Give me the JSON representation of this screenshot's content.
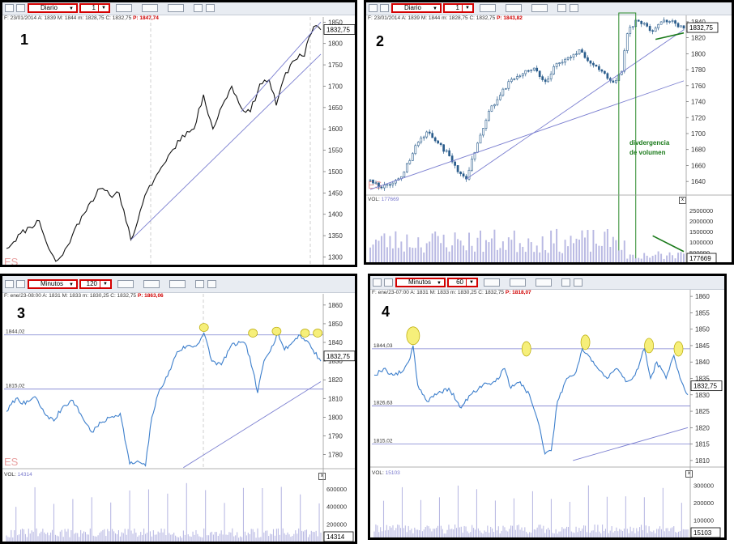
{
  "panels": [
    {
      "id": "p1",
      "number": "1",
      "toolbar": {
        "timeframe": "Diario",
        "period": "1"
      },
      "info": {
        "fecha": "F: 23/01/2014",
        "a": "A: 1839",
        "m": "M: 1844",
        "mi": "m: 1828,75",
        "c": "C: 1832,75",
        "p": "P: 1847,74"
      },
      "price_label": "1832,75",
      "es_label": "ES",
      "chart_data": {
        "type": "line",
        "title": "",
        "y_ticks": [
          1850,
          1800,
          1750,
          1700,
          1650,
          1600,
          1550,
          1500,
          1450,
          1400,
          1350,
          1300
        ],
        "y_range": [
          1282,
          1862
        ],
        "anchors": [
          [
            0,
            1320
          ],
          [
            6,
            1355
          ],
          [
            10,
            1370
          ],
          [
            14,
            1385
          ],
          [
            18,
            1320
          ],
          [
            21,
            1290
          ],
          [
            24,
            1305
          ],
          [
            28,
            1350
          ],
          [
            32,
            1395
          ],
          [
            36,
            1430
          ],
          [
            40,
            1460
          ],
          [
            44,
            1445
          ],
          [
            48,
            1450
          ],
          [
            50,
            1410
          ],
          [
            53,
            1340
          ],
          [
            56,
            1385
          ],
          [
            60,
            1455
          ],
          [
            65,
            1500
          ],
          [
            70,
            1545
          ],
          [
            75,
            1585
          ],
          [
            80,
            1600
          ],
          [
            84,
            1680
          ],
          [
            88,
            1600
          ],
          [
            92,
            1655
          ],
          [
            96,
            1700
          ],
          [
            100,
            1650
          ],
          [
            104,
            1640
          ],
          [
            108,
            1705
          ],
          [
            112,
            1715
          ],
          [
            115,
            1655
          ],
          [
            118,
            1715
          ],
          [
            121,
            1750
          ],
          [
            125,
            1775
          ],
          [
            127,
            1770
          ],
          [
            129,
            1815
          ],
          [
            132,
            1842
          ],
          [
            134,
            1832
          ]
        ],
        "n": 135,
        "seed": 11
      },
      "trendlines": [
        {
          "from": [
            53,
            1340
          ],
          "to": [
            134,
            1775
          ]
        },
        {
          "from": [
            100,
            1640
          ],
          "to": [
            134,
            1850
          ]
        }
      ]
    },
    {
      "id": "p2",
      "number": "2",
      "toolbar": {
        "timeframe": "Diario",
        "period": "1"
      },
      "info": {
        "fecha": "F: 23/01/2014",
        "a": "A: 1839",
        "m": "M: 1844",
        "mi": "m: 1828,75",
        "c": "C: 1832,75",
        "p": "P: 1843,82"
      },
      "price_label": "1832,75",
      "es_label": "ES",
      "annotation": [
        "divdergencia",
        "de volumen"
      ],
      "volume": {
        "label": "VOL:",
        "value": "177669",
        "y_ticks": [
          "2500000",
          "2000000",
          "1500000",
          "1000000",
          "500000"
        ],
        "current": "177669",
        "close_symbol": "x"
      },
      "chart_data": {
        "type": "candlestick",
        "title": "",
        "y_ticks": [
          1840,
          1820,
          1800,
          1780,
          1760,
          1740,
          1720,
          1700,
          1680,
          1660,
          1640
        ],
        "y_range": [
          1627,
          1848
        ],
        "anchors": [
          [
            0,
            1642
          ],
          [
            4,
            1632
          ],
          [
            8,
            1638
          ],
          [
            12,
            1652
          ],
          [
            16,
            1685
          ],
          [
            20,
            1702
          ],
          [
            24,
            1688
          ],
          [
            28,
            1672
          ],
          [
            31,
            1652
          ],
          [
            34,
            1643
          ],
          [
            38,
            1688
          ],
          [
            42,
            1728
          ],
          [
            46,
            1748
          ],
          [
            50,
            1768
          ],
          [
            54,
            1775
          ],
          [
            58,
            1782
          ],
          [
            62,
            1765
          ],
          [
            66,
            1788
          ],
          [
            70,
            1795
          ],
          [
            74,
            1805
          ],
          [
            78,
            1788
          ],
          [
            82,
            1778
          ],
          [
            86,
            1764
          ],
          [
            89,
            1778
          ],
          [
            91,
            1825
          ],
          [
            94,
            1842
          ],
          [
            97,
            1838
          ],
          [
            100,
            1828
          ],
          [
            104,
            1842
          ],
          [
            108,
            1838
          ],
          [
            111,
            1832
          ]
        ],
        "n": 112,
        "seed": 5
      },
      "trendlines": [
        {
          "from": [
            0,
            1630
          ],
          "to": [
            111,
            1766
          ]
        },
        {
          "from": [
            34,
            1643
          ],
          "to": [
            111,
            1830
          ]
        }
      ],
      "volume_data": {
        "max": 2700000,
        "n": 112,
        "base": 1300000,
        "seed": 23
      }
    },
    {
      "id": "p3",
      "number": "3",
      "toolbar": {
        "timeframe": "Minutos",
        "period": "120"
      },
      "info": {
        "fecha": "F: ene/23-08:00",
        "a": "A: 1831",
        "m": "M: 1833",
        "mi": "m: 1830,25",
        "c": "C: 1832,75",
        "p": "P: 1863,06"
      },
      "price_label": "1832,75",
      "es_label": "ES",
      "levels": [
        {
          "value": 1844.02,
          "label": "1844,02"
        },
        {
          "value": 1815.02,
          "label": "1815,02"
        }
      ],
      "volume": {
        "label": "VOL:",
        "value": "14314",
        "y_ticks": [
          "600000",
          "400000",
          "200000"
        ],
        "current": "14314",
        "close_symbol": "x"
      },
      "chart_data": {
        "type": "line",
        "title": "",
        "y_ticks": [
          1860,
          1850,
          1840,
          1830,
          1820,
          1810,
          1800,
          1790,
          1780
        ],
        "y_range": [
          1772,
          1866
        ],
        "anchors": [
          [
            0,
            1803
          ],
          [
            6,
            1810
          ],
          [
            12,
            1807
          ],
          [
            18,
            1811
          ],
          [
            24,
            1802
          ],
          [
            30,
            1798
          ],
          [
            36,
            1806
          ],
          [
            42,
            1809
          ],
          [
            48,
            1800
          ],
          [
            54,
            1792
          ],
          [
            60,
            1797
          ],
          [
            66,
            1800
          ],
          [
            72,
            1802
          ],
          [
            78,
            1775
          ],
          [
            84,
            1776
          ],
          [
            88,
            1774
          ],
          [
            92,
            1800
          ],
          [
            97,
            1815
          ],
          [
            102,
            1822
          ],
          [
            108,
            1835
          ],
          [
            114,
            1838
          ],
          [
            120,
            1838
          ],
          [
            125,
            1845
          ],
          [
            130,
            1830
          ],
          [
            136,
            1828
          ],
          [
            142,
            1838
          ],
          [
            148,
            1840
          ],
          [
            152,
            1838
          ],
          [
            156,
            1825
          ],
          [
            159,
            1813
          ],
          [
            163,
            1830
          ],
          [
            168,
            1838
          ],
          [
            172,
            1845
          ],
          [
            176,
            1836
          ],
          [
            180,
            1839
          ],
          [
            185,
            1844
          ],
          [
            190,
            1841
          ],
          [
            194,
            1836
          ],
          [
            199,
            1830
          ]
        ],
        "n": 200,
        "seed": 7
      },
      "trendlines": [
        {
          "from": [
            112,
            1773
          ],
          "to": [
            199,
            1819
          ]
        }
      ],
      "ellipses": [
        {
          "x": 125,
          "y": 1848
        },
        {
          "x": 156,
          "y": 1845
        },
        {
          "x": 171,
          "y": 1846
        },
        {
          "x": 189,
          "y": 1845
        },
        {
          "x": 197,
          "y": 1845
        }
      ],
      "volume_data": {
        "max": 700000,
        "n": 200,
        "base": 120000,
        "seed": 31,
        "spike_every": 12
      }
    },
    {
      "id": "p4",
      "number": "4",
      "toolbar": {
        "timeframe": "Minutos",
        "period": "60"
      },
      "info": {
        "fecha": "F: ene/23-07:00",
        "a": "A: 1831",
        "m": "M: 1833",
        "mi": "m: 1830,25",
        "c": "C: 1832,75",
        "p": "P: 1818,07"
      },
      "price_label": "1832,75",
      "es_label": "",
      "levels": [
        {
          "value": 1844.03,
          "label": "1844,03"
        },
        {
          "value": 1826.63,
          "label": "1826,63"
        },
        {
          "value": 1815.02,
          "label": "1815,02"
        }
      ],
      "volume": {
        "label": "VOL:",
        "value": "15103",
        "y_ticks": [
          "300000",
          "200000",
          "100000"
        ],
        "current": "15103",
        "close_symbol": "x"
      },
      "chart_data": {
        "type": "line",
        "title": "",
        "y_ticks": [
          1860,
          1855,
          1850,
          1845,
          1840,
          1835,
          1830,
          1825,
          1820,
          1815,
          1810
        ],
        "y_range": [
          1808,
          1862
        ],
        "anchors": [
          [
            0,
            1836
          ],
          [
            6,
            1838
          ],
          [
            12,
            1836
          ],
          [
            18,
            1837
          ],
          [
            22,
            1840
          ],
          [
            25,
            1845
          ],
          [
            28,
            1833
          ],
          [
            34,
            1828
          ],
          [
            40,
            1830
          ],
          [
            48,
            1832
          ],
          [
            56,
            1826
          ],
          [
            62,
            1830
          ],
          [
            70,
            1833
          ],
          [
            78,
            1834
          ],
          [
            84,
            1838
          ],
          [
            88,
            1832
          ],
          [
            94,
            1834
          ],
          [
            100,
            1830
          ],
          [
            106,
            1821
          ],
          [
            110,
            1812
          ],
          [
            114,
            1813
          ],
          [
            118,
            1828
          ],
          [
            124,
            1835
          ],
          [
            130,
            1837
          ],
          [
            134,
            1844
          ],
          [
            138,
            1842
          ],
          [
            144,
            1838
          ],
          [
            150,
            1835
          ],
          [
            156,
            1838
          ],
          [
            162,
            1834
          ],
          [
            168,
            1836
          ],
          [
            174,
            1844
          ],
          [
            178,
            1835
          ],
          [
            182,
            1840
          ],
          [
            188,
            1835
          ],
          [
            193,
            1842
          ],
          [
            198,
            1834
          ],
          [
            202,
            1830
          ]
        ],
        "n": 203,
        "seed": 19
      },
      "trendlines": [
        {
          "from": [
            128,
            1810
          ],
          "to": [
            202,
            1820
          ]
        }
      ],
      "ellipses": [
        {
          "x": 25,
          "y": 1848
        },
        {
          "x": 98,
          "y": 1844
        },
        {
          "x": 136,
          "y": 1846
        },
        {
          "x": 177,
          "y": 1845
        },
        {
          "x": 196,
          "y": 1844
        }
      ],
      "volume_data": {
        "max": 340000,
        "n": 203,
        "base": 60000,
        "seed": 41,
        "spike_every": 12
      }
    }
  ]
}
